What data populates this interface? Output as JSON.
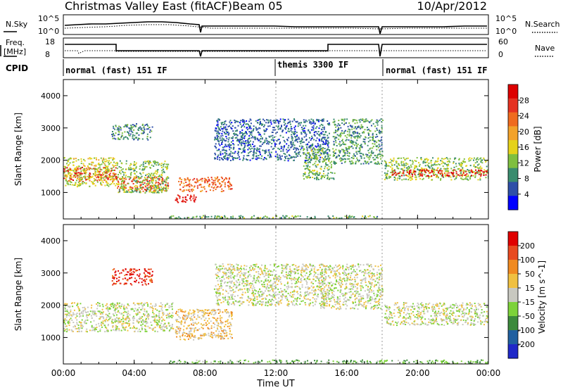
{
  "header": {
    "title": "Christmas Valley East (fitACF)",
    "beam": "Beam 05",
    "date": "10/Apr/2012"
  },
  "summary": {
    "nsky_label": "N.Sky",
    "nsearch_label": "N.Search",
    "n_ticks": [
      "10^5",
      "10^0"
    ],
    "freq_label_1": "Freq.",
    "freq_label_2": "[MHz]",
    "freq_ticks": [
      "18",
      "8"
    ],
    "nave_label": "Nave",
    "nave_ticks": [
      "60",
      "0"
    ],
    "cpid_label": "CPID",
    "cpid_segments": [
      {
        "text": "normal (fast) 151 IF",
        "start_hour": 0
      },
      {
        "text": "themis 3300 IF",
        "start_hour": 12
      },
      {
        "text": "normal (fast) 151 IF",
        "start_hour": 18
      }
    ]
  },
  "colors": {
    "power_scale": [
      "#0000ff",
      "#2e4fa8",
      "#3a8c6e",
      "#7fbf3f",
      "#e5d21a",
      "#f2a22a",
      "#ef6b1f",
      "#e53222",
      "#dd0000"
    ],
    "velocity_scale": [
      "#1f28c8",
      "#2060a0",
      "#3c8a3c",
      "#7dd23a",
      "#c8c8c0",
      "#f0c040",
      "#f08a20",
      "#e84a20",
      "#e00000"
    ]
  },
  "colorbars": {
    "power": {
      "label": "Power [dB]",
      "ticks": [
        "28",
        "24",
        "20",
        "16",
        "12",
        "8",
        "4"
      ]
    },
    "velocity": {
      "label": "Velocity [m s^-1]",
      "ticks": [
        "200",
        "100",
        "50",
        "15",
        "-15",
        "-50",
        "-100",
        "-200"
      ]
    }
  },
  "chart_data": [
    {
      "type": "heatmap",
      "title": "",
      "quantity": "Power [dB]",
      "xlabel": "Time UT",
      "ylabel": "Slant Range [km]",
      "xlim": [
        0,
        24
      ],
      "ylim": [
        180,
        4500
      ],
      "x_ticks": [
        "00:00",
        "04:00",
        "08:00",
        "12:00",
        "16:00",
        "20:00",
        "00:00"
      ],
      "y_ticks": [
        1000,
        2000,
        3000,
        4000
      ],
      "colorbar_range": [
        0,
        30
      ],
      "echo_regions": [
        {
          "t0": 0.0,
          "t1": 3.0,
          "r0": 1350,
          "r1": 1800,
          "value": 26
        },
        {
          "t0": 0.0,
          "t1": 3.0,
          "r0": 1200,
          "r1": 2100,
          "value": 14
        },
        {
          "t0": 3.0,
          "t1": 5.9,
          "r0": 1050,
          "r1": 1500,
          "value": 24
        },
        {
          "t0": 3.0,
          "t1": 5.9,
          "r0": 1000,
          "r1": 2000,
          "value": 12
        },
        {
          "t0": 2.7,
          "t1": 5.0,
          "r0": 2650,
          "r1": 3150,
          "value": 8
        },
        {
          "t0": 6.3,
          "t1": 7.5,
          "r0": 700,
          "r1": 950,
          "value": 27
        },
        {
          "t0": 6.4,
          "t1": 9.5,
          "r0": 1050,
          "r1": 1500,
          "value": 22
        },
        {
          "t0": 8.5,
          "t1": 15.0,
          "r0": 2000,
          "r1": 3300,
          "value": 6
        },
        {
          "t0": 13.5,
          "t1": 15.3,
          "r0": 1400,
          "r1": 2400,
          "value": 11
        },
        {
          "t0": 15.2,
          "t1": 18.0,
          "r0": 1900,
          "r1": 3300,
          "value": 9
        },
        {
          "t0": 18.1,
          "t1": 24.0,
          "r0": 1400,
          "r1": 2100,
          "value": 12
        },
        {
          "t0": 18.5,
          "t1": 24.0,
          "r0": 1520,
          "r1": 1720,
          "value": 26
        },
        {
          "t0": 6.0,
          "t1": 18.0,
          "r0": 180,
          "r1": 300,
          "value": 10
        }
      ]
    },
    {
      "type": "heatmap",
      "title": "",
      "quantity": "Velocity [m s^-1]",
      "xlabel": "Time UT",
      "ylabel": "Slant Range [km]",
      "xlim": [
        0,
        24
      ],
      "ylim": [
        180,
        4500
      ],
      "x_ticks": [
        "00:00",
        "04:00",
        "08:00",
        "12:00",
        "16:00",
        "20:00",
        "00:00"
      ],
      "y_ticks": [
        1000,
        2000,
        3000,
        4000
      ],
      "colorbar_range": [
        -200,
        200
      ],
      "echo_regions": [
        {
          "t0": 0.0,
          "t1": 6.2,
          "r0": 1200,
          "r1": 2100,
          "value": 0
        },
        {
          "t0": 2.7,
          "t1": 5.0,
          "r0": 2650,
          "r1": 3150,
          "value": 150
        },
        {
          "t0": 6.3,
          "t1": 9.5,
          "r0": 950,
          "r1": 1900,
          "value": 40
        },
        {
          "t0": 8.5,
          "t1": 15.0,
          "r0": 2000,
          "r1": 3300,
          "value": 0
        },
        {
          "t0": 14.5,
          "t1": 18.0,
          "r0": 1900,
          "r1": 3300,
          "value": 0
        },
        {
          "t0": 18.1,
          "t1": 24.0,
          "r0": 1400,
          "r1": 2100,
          "value": 0
        },
        {
          "t0": 6.0,
          "t1": 24.0,
          "r0": 180,
          "r1": 320,
          "value": -60
        }
      ]
    }
  ]
}
